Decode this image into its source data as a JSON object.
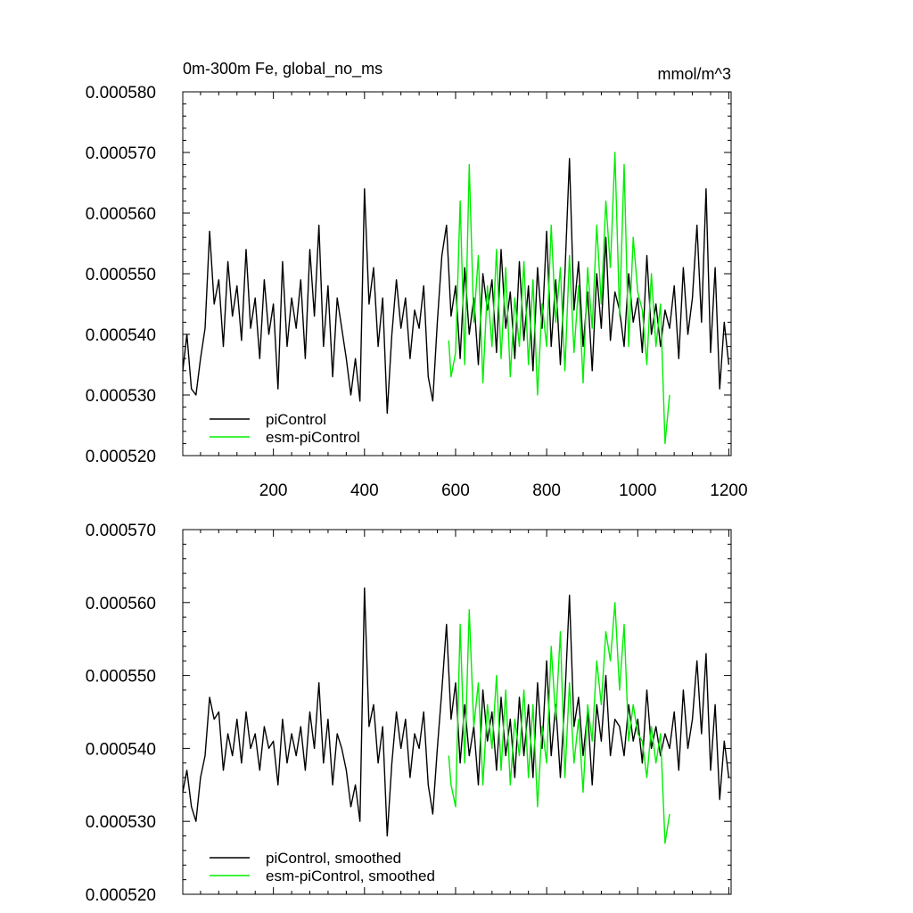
{
  "chart_data": [
    {
      "type": "line",
      "title_left": "0m-300m Fe, global_no_ms",
      "title_right": "mmol/m^3",
      "xlabel": "",
      "ylabel": "",
      "xlim": [
        1,
        1205
      ],
      "ylim": [
        0.00052,
        0.00058
      ],
      "x_ticks": [
        200,
        400,
        600,
        800,
        1000,
        1200
      ],
      "x_tick_labels": [
        "200",
        "400",
        "600",
        "800",
        "1000",
        "1200"
      ],
      "y_ticks": [
        0.00052,
        0.00053,
        0.00054,
        0.00055,
        0.00056,
        0.00057,
        0.00058
      ],
      "y_tick_labels": [
        "0.000520",
        "0.000530",
        "0.000540",
        "0.000550",
        "0.000560",
        "0.000570",
        "0.000580"
      ],
      "legend_position": "bottom-left",
      "series": [
        {
          "name": "piControl",
          "color": "#000000",
          "x": [
            1,
            10,
            20,
            30,
            40,
            50,
            60,
            70,
            80,
            90,
            100,
            110,
            120,
            130,
            140,
            150,
            160,
            170,
            180,
            190,
            200,
            210,
            220,
            230,
            240,
            250,
            260,
            270,
            280,
            290,
            300,
            310,
            320,
            330,
            340,
            350,
            360,
            370,
            380,
            390,
            400,
            410,
            420,
            430,
            440,
            450,
            460,
            470,
            480,
            490,
            500,
            510,
            520,
            530,
            540,
            550,
            560,
            570,
            580,
            590,
            600,
            610,
            620,
            630,
            640,
            650,
            660,
            670,
            680,
            690,
            700,
            710,
            720,
            730,
            740,
            750,
            760,
            770,
            780,
            790,
            800,
            810,
            820,
            830,
            840,
            850,
            860,
            870,
            880,
            890,
            900,
            910,
            920,
            930,
            940,
            950,
            960,
            970,
            980,
            990,
            1000,
            1010,
            1020,
            1030,
            1040,
            1050,
            1060,
            1070,
            1080,
            1090,
            1100,
            1110,
            1120,
            1130,
            1140,
            1150,
            1160,
            1170,
            1180,
            1190,
            1200
          ],
          "values": [
            0.000534,
            0.00054,
            0.000531,
            0.00053,
            0.000536,
            0.000541,
            0.000557,
            0.000545,
            0.000549,
            0.000538,
            0.000552,
            0.000543,
            0.000548,
            0.000539,
            0.000554,
            0.000541,
            0.000546,
            0.000536,
            0.000549,
            0.00054,
            0.000545,
            0.000531,
            0.000552,
            0.000538,
            0.000546,
            0.000541,
            0.000549,
            0.000536,
            0.000554,
            0.000543,
            0.000558,
            0.000538,
            0.000548,
            0.000533,
            0.000546,
            0.000541,
            0.000536,
            0.00053,
            0.000536,
            0.000529,
            0.000564,
            0.000545,
            0.000551,
            0.000538,
            0.000546,
            0.000527,
            0.00054,
            0.000549,
            0.000541,
            0.000546,
            0.000536,
            0.000544,
            0.000541,
            0.000548,
            0.000533,
            0.000529,
            0.000542,
            0.000553,
            0.000558,
            0.000543,
            0.000548,
            0.000536,
            0.000551,
            0.00054,
            0.000546,
            0.000535,
            0.00055,
            0.000544,
            0.000549,
            0.000537,
            0.000554,
            0.000541,
            0.000547,
            0.000536,
            0.000552,
            0.000539,
            0.000548,
            0.000534,
            0.000551,
            0.000541,
            0.000557,
            0.000538,
            0.000549,
            0.000535,
            0.00055,
            0.000569,
            0.000544,
            0.000552,
            0.000538,
            0.000547,
            0.000534,
            0.00055,
            0.000541,
            0.000556,
            0.000539,
            0.000547,
            0.000544,
            0.000538,
            0.00055,
            0.000542,
            0.000546,
            0.000537,
            0.000553,
            0.00054,
            0.000545,
            0.000538,
            0.000544,
            0.000541,
            0.000548,
            0.000536,
            0.000551,
            0.00054,
            0.000546,
            0.000558,
            0.000542,
            0.000564,
            0.000537,
            0.000551,
            0.000531,
            0.000542,
            0.000535
          ]
        },
        {
          "name": "esm-piControl",
          "color": "#00ee00",
          "x": [
            585,
            590,
            600,
            610,
            620,
            630,
            640,
            650,
            660,
            670,
            680,
            690,
            700,
            710,
            720,
            730,
            740,
            750,
            760,
            770,
            780,
            790,
            800,
            810,
            820,
            830,
            840,
            850,
            860,
            870,
            880,
            890,
            900,
            910,
            920,
            930,
            940,
            950,
            960,
            970,
            980,
            990,
            1000,
            1010,
            1020,
            1030,
            1040,
            1050,
            1060,
            1070
          ],
          "values": [
            0.000539,
            0.000533,
            0.000537,
            0.000562,
            0.000535,
            0.000568,
            0.000542,
            0.000553,
            0.000532,
            0.000548,
            0.000538,
            0.000554,
            0.000536,
            0.000551,
            0.000533,
            0.000546,
            0.000538,
            0.000552,
            0.000535,
            0.000549,
            0.00053,
            0.000545,
            0.000538,
            0.000558,
            0.000542,
            0.000551,
            0.000534,
            0.000553,
            0.000537,
            0.000548,
            0.000532,
            0.000551,
            0.000541,
            0.000558,
            0.000545,
            0.000562,
            0.000551,
            0.00057,
            0.000543,
            0.000568,
            0.000538,
            0.000556,
            0.000547,
            0.000544,
            0.000535,
            0.00055,
            0.000538,
            0.000545,
            0.000522,
            0.00053
          ]
        }
      ]
    },
    {
      "type": "line",
      "title_left": "",
      "title_right": "",
      "xlabel": "",
      "ylabel": "",
      "xlim": [
        1,
        1205
      ],
      "ylim": [
        0.00052,
        0.00057
      ],
      "x_ticks": [
        200,
        400,
        600,
        800,
        1000,
        1200
      ],
      "x_tick_labels": [],
      "y_ticks": [
        0.00052,
        0.00053,
        0.00054,
        0.00055,
        0.00056,
        0.00057
      ],
      "y_tick_labels": [
        "0.000520",
        "0.000530",
        "0.000540",
        "0.000550",
        "0.000560",
        "0.000570"
      ],
      "legend_position": "bottom-left",
      "series": [
        {
          "name": "piControl, smoothed",
          "color": "#000000",
          "x": [
            1,
            10,
            20,
            30,
            40,
            50,
            60,
            70,
            80,
            90,
            100,
            110,
            120,
            130,
            140,
            150,
            160,
            170,
            180,
            190,
            200,
            210,
            220,
            230,
            240,
            250,
            260,
            270,
            280,
            290,
            300,
            310,
            320,
            330,
            340,
            350,
            360,
            370,
            380,
            390,
            400,
            410,
            420,
            430,
            440,
            450,
            460,
            470,
            480,
            490,
            500,
            510,
            520,
            530,
            540,
            550,
            560,
            570,
            580,
            590,
            600,
            610,
            620,
            630,
            640,
            650,
            660,
            670,
            680,
            690,
            700,
            710,
            720,
            730,
            740,
            750,
            760,
            770,
            780,
            790,
            800,
            810,
            820,
            830,
            840,
            850,
            860,
            870,
            880,
            890,
            900,
            910,
            920,
            930,
            940,
            950,
            960,
            970,
            980,
            990,
            1000,
            1010,
            1020,
            1030,
            1040,
            1050,
            1060,
            1070,
            1080,
            1090,
            1100,
            1110,
            1120,
            1130,
            1140,
            1150,
            1160,
            1170,
            1180,
            1190,
            1200
          ],
          "values": [
            0.000534,
            0.000537,
            0.000532,
            0.00053,
            0.000536,
            0.000539,
            0.000547,
            0.000544,
            0.000545,
            0.000537,
            0.000542,
            0.000539,
            0.000544,
            0.000538,
            0.000545,
            0.00054,
            0.000542,
            0.000537,
            0.000543,
            0.00054,
            0.000541,
            0.000535,
            0.000544,
            0.000538,
            0.000542,
            0.000539,
            0.000543,
            0.000537,
            0.000545,
            0.00054,
            0.000549,
            0.000538,
            0.000544,
            0.000535,
            0.000542,
            0.00054,
            0.000537,
            0.000532,
            0.000535,
            0.00053,
            0.000562,
            0.000543,
            0.000546,
            0.000538,
            0.000543,
            0.000528,
            0.000538,
            0.000545,
            0.00054,
            0.000544,
            0.000536,
            0.000542,
            0.00054,
            0.000545,
            0.000535,
            0.000531,
            0.00054,
            0.000548,
            0.000557,
            0.000544,
            0.000549,
            0.000538,
            0.000546,
            0.000539,
            0.000543,
            0.000535,
            0.000548,
            0.000541,
            0.000545,
            0.000537,
            0.000547,
            0.000539,
            0.000544,
            0.000536,
            0.000547,
            0.000539,
            0.000546,
            0.000536,
            0.000549,
            0.00054,
            0.000552,
            0.000539,
            0.000546,
            0.000536,
            0.000547,
            0.000561,
            0.000543,
            0.000547,
            0.000539,
            0.000545,
            0.000535,
            0.000546,
            0.000541,
            0.00055,
            0.000539,
            0.000544,
            0.000543,
            0.000539,
            0.000546,
            0.000541,
            0.000544,
            0.000538,
            0.000548,
            0.00054,
            0.000543,
            0.000539,
            0.000542,
            0.00054,
            0.000545,
            0.000537,
            0.000548,
            0.00054,
            0.000544,
            0.000552,
            0.000542,
            0.000553,
            0.000537,
            0.000546,
            0.000533,
            0.000541,
            0.000536
          ]
        },
        {
          "name": "esm-piControl, smoothed",
          "color": "#00ee00",
          "x": [
            585,
            590,
            600,
            610,
            620,
            630,
            640,
            650,
            660,
            670,
            680,
            690,
            700,
            710,
            720,
            730,
            740,
            750,
            760,
            770,
            780,
            790,
            800,
            810,
            820,
            830,
            840,
            850,
            860,
            870,
            880,
            890,
            900,
            910,
            920,
            930,
            940,
            950,
            960,
            970,
            980,
            990,
            1000,
            1010,
            1020,
            1030,
            1040,
            1050,
            1060,
            1070
          ],
          "values": [
            0.000539,
            0.000535,
            0.000532,
            0.000557,
            0.000538,
            0.000559,
            0.000543,
            0.000549,
            0.000535,
            0.000546,
            0.00054,
            0.00055,
            0.000537,
            0.000548,
            0.000535,
            0.000544,
            0.000539,
            0.000548,
            0.000536,
            0.000546,
            0.000532,
            0.000543,
            0.000538,
            0.000554,
            0.000544,
            0.000556,
            0.000536,
            0.000549,
            0.000538,
            0.000544,
            0.000534,
            0.000546,
            0.000541,
            0.000552,
            0.000546,
            0.000556,
            0.000552,
            0.00056,
            0.000548,
            0.000557,
            0.000541,
            0.000546,
            0.000542,
            0.000541,
            0.000536,
            0.000543,
            0.000538,
            0.000542,
            0.000527,
            0.000531
          ]
        }
      ]
    }
  ]
}
